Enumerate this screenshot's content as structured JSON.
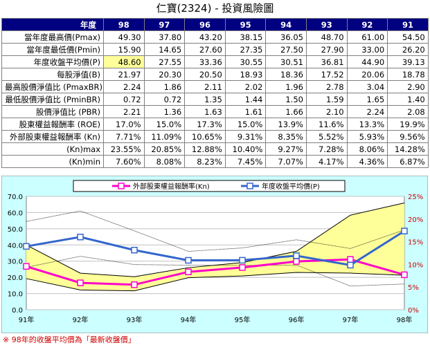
{
  "title": "仁寶(2324) - 投資風險圖",
  "table": {
    "corner_label": "年度",
    "years": [
      "98",
      "97",
      "96",
      "95",
      "94",
      "93",
      "92",
      "91"
    ],
    "rows": [
      {
        "label": "當年度最高價(Pmax)",
        "values": [
          "49.30",
          "37.80",
          "43.20",
          "38.15",
          "36.05",
          "48.70",
          "61.00",
          "54.50"
        ]
      },
      {
        "label": "當年度最低價(Pmin)",
        "values": [
          "15.90",
          "14.65",
          "27.60",
          "27.35",
          "27.50",
          "27.90",
          "33.00",
          "26.20"
        ]
      },
      {
        "label": "年度收盤平均價(P)",
        "values": [
          "48.60",
          "27.55",
          "33.36",
          "30.55",
          "30.51",
          "36.81",
          "44.90",
          "39.13"
        ],
        "highlight_first": true
      },
      {
        "label": "每股淨值(B)",
        "values": [
          "21.97",
          "20.30",
          "20.50",
          "18.93",
          "18.36",
          "17.52",
          "20.06",
          "18.78"
        ]
      },
      {
        "label": "最高股價淨值比 (PmaxBR)",
        "values": [
          "2.24",
          "1.86",
          "2.11",
          "2.02",
          "1.96",
          "2.78",
          "3.04",
          "2.90"
        ]
      },
      {
        "label": "最低股價淨值比 (PminBR)",
        "values": [
          "0.72",
          "0.72",
          "1.35",
          "1.44",
          "1.50",
          "1.59",
          "1.65",
          "1.40"
        ]
      },
      {
        "label": "股價淨值比 (PBR)",
        "values": [
          "2.21",
          "1.36",
          "1.63",
          "1.61",
          "1.66",
          "2.10",
          "2.24",
          "2.08"
        ]
      },
      {
        "label": "股東權益報酬率 (ROE)",
        "values": [
          "17.0%",
          "15.0%",
          "17.3%",
          "15.0%",
          "13.9%",
          "11.6%",
          "13.3%",
          "19.9%"
        ]
      },
      {
        "label": "外部股東權益報酬率 (Kn)",
        "values": [
          "7.71%",
          "11.09%",
          "10.65%",
          "9.31%",
          "8.35%",
          "5.52%",
          "5.93%",
          "9.56%"
        ]
      },
      {
        "label": "(Kn)max",
        "values": [
          "23.55%",
          "20.85%",
          "12.88%",
          "10.40%",
          "9.27%",
          "7.28%",
          "8.06%",
          "14.28%"
        ]
      },
      {
        "label": "(Kn)min",
        "values": [
          "7.60%",
          "8.08%",
          "8.23%",
          "7.45%",
          "7.07%",
          "4.17%",
          "4.36%",
          "6.87%"
        ]
      }
    ]
  },
  "chart_data": {
    "type": "line",
    "categories": [
      "91年",
      "92年",
      "93年",
      "94年",
      "95年",
      "96年",
      "97年",
      "98年"
    ],
    "ylim_left": [
      0,
      70
    ],
    "yticks_left": [
      "0.0",
      "10.0",
      "20.0",
      "30.0",
      "40.0",
      "50.0",
      "60.0",
      "70.0"
    ],
    "ylim_right": [
      0,
      25
    ],
    "yticks_right": [
      "0%",
      "5%",
      "10%",
      "15%",
      "20%",
      "25%"
    ],
    "grid": true,
    "legend_position": "top",
    "series": [
      {
        "name": "外部股東權益報酬率(Kn)",
        "axis": "right",
        "color": "#ff00cc",
        "marker": "square",
        "values": [
          9.56,
          5.93,
          5.52,
          8.35,
          9.31,
          10.65,
          11.09,
          7.71
        ]
      },
      {
        "name": "年度收盤平均價(P)",
        "axis": "left",
        "color": "#3366cc",
        "marker": "square",
        "values": [
          39.13,
          44.9,
          36.81,
          30.51,
          30.55,
          33.36,
          27.55,
          48.6
        ]
      }
    ],
    "band": {
      "axis": "right",
      "fill": "#ffff99",
      "stroke": "#000000",
      "upper": [
        14.28,
        8.06,
        7.28,
        9.27,
        10.4,
        12.88,
        20.85,
        23.55
      ],
      "lower": [
        6.87,
        4.36,
        4.17,
        7.07,
        7.45,
        8.23,
        8.08,
        7.6
      ]
    },
    "price_lines": {
      "axis": "left",
      "color": "#000000",
      "max": [
        54.5,
        61.0,
        48.7,
        36.05,
        38.15,
        43.2,
        37.8,
        49.3
      ],
      "min": [
        26.2,
        33.0,
        27.9,
        27.5,
        27.35,
        27.6,
        14.65,
        15.9
      ]
    }
  },
  "footnote": "※ 98年的收盤平均價為「最新收盤價」"
}
